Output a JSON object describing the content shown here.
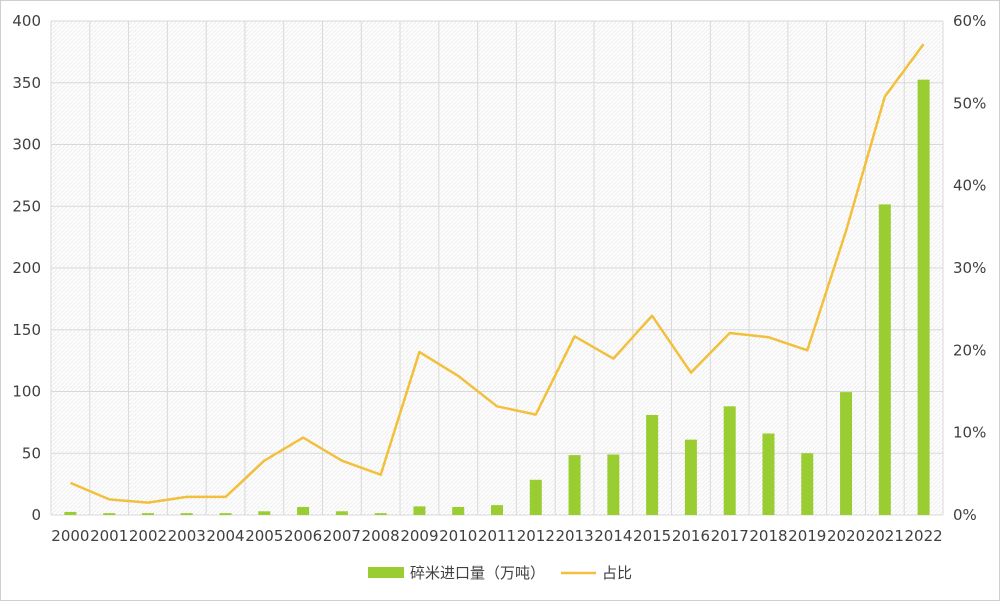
{
  "chart_data": {
    "type": "bar",
    "categories": [
      "2000",
      "2001",
      "2002",
      "2003",
      "2004",
      "2005",
      "2006",
      "2007",
      "2008",
      "2009",
      "2010",
      "2011",
      "2012",
      "2013",
      "2014",
      "2015",
      "2016",
      "2017",
      "2018",
      "2019",
      "2020",
      "2021",
      "2022"
    ],
    "series": [
      {
        "name": "碎米进口量（万吨）",
        "type": "bar",
        "axis": "left",
        "color": "#9acd32",
        "values": [
          2.5,
          1.5,
          1.5,
          1.5,
          1.5,
          3,
          6.5,
          3,
          1.5,
          7,
          6.5,
          8,
          28.5,
          48.5,
          49,
          81,
          61,
          88,
          66,
          50,
          99.5,
          251.5,
          352.5
        ]
      },
      {
        "name": "占比",
        "type": "line",
        "axis": "right",
        "color": "#f2c03c",
        "values": [
          3.9,
          1.9,
          1.5,
          2.2,
          2.2,
          6.6,
          9.4,
          6.6,
          4.9,
          19.8,
          16.9,
          13.2,
          12.2,
          21.7,
          19.0,
          24.2,
          17.3,
          22.1,
          21.6,
          20.0,
          34.5,
          50.8,
          57.2
        ]
      }
    ],
    "ylim": [
      0,
      400
    ],
    "yticks": [
      "0",
      "50",
      "100",
      "150",
      "200",
      "250",
      "300",
      "350",
      "400"
    ],
    "y2lim": [
      0,
      60
    ],
    "y2ticks": [
      "0%",
      "10%",
      "20%",
      "30%",
      "40%",
      "50%",
      "60%"
    ],
    "grid": true,
    "legend_position": "bottom",
    "title": "",
    "xlabel": "",
    "ylabel": ""
  }
}
